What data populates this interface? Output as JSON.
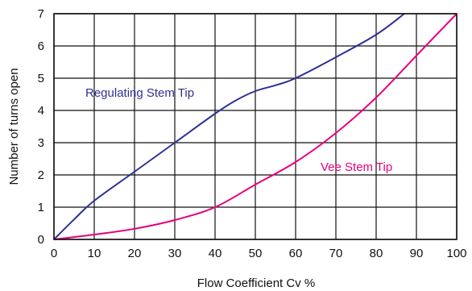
{
  "chart_data": {
    "type": "line",
    "xlabel": "Flow Coefficient Cv %",
    "ylabel": "Number of turns open",
    "xlim": [
      0,
      100
    ],
    "ylim": [
      0,
      7
    ],
    "grid": true,
    "x_ticks": [
      0,
      10,
      20,
      30,
      40,
      50,
      60,
      70,
      80,
      90,
      100
    ],
    "y_ticks": [
      0,
      1,
      2,
      3,
      4,
      5,
      6,
      7
    ],
    "series": [
      {
        "name": "Regulating Stem Tip",
        "color": "#2E3192",
        "x": [
          0,
          5,
          10,
          20,
          30,
          40,
          45,
          50,
          55,
          60,
          70,
          80,
          87
        ],
        "y": [
          0,
          0.62,
          1.2,
          2.1,
          3.0,
          3.9,
          4.3,
          4.6,
          4.78,
          5.0,
          5.65,
          6.35,
          7.0
        ]
      },
      {
        "name": "Vee Stem Tip",
        "color": "#E6007E",
        "x": [
          0,
          10,
          20,
          30,
          40,
          50,
          60,
          70,
          80,
          90,
          100
        ],
        "y": [
          0,
          0.15,
          0.33,
          0.6,
          1.0,
          1.7,
          2.4,
          3.3,
          4.4,
          5.7,
          7.0
        ]
      }
    ]
  }
}
